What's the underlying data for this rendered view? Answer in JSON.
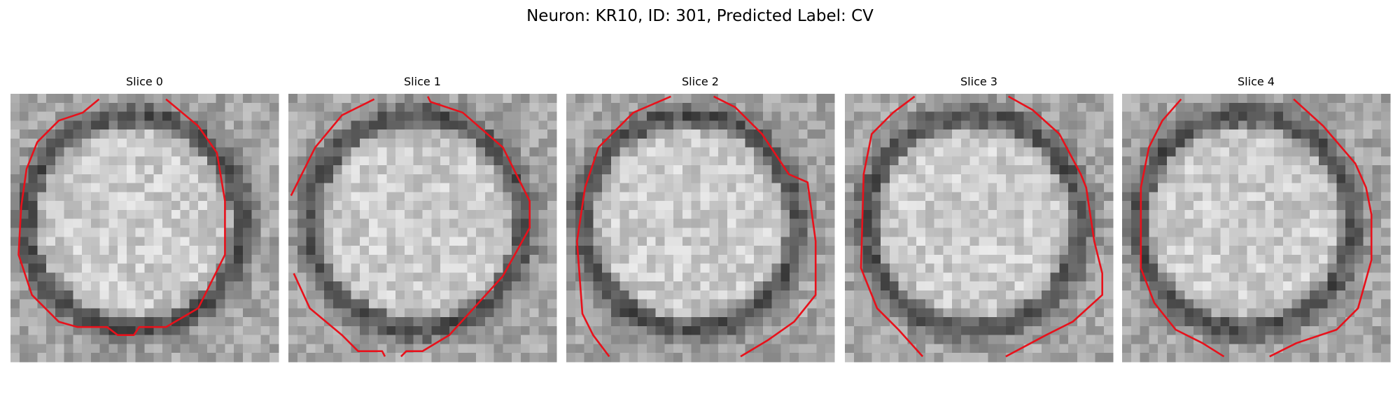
{
  "title": "Neuron: KR10, ID: 301, Predicted Label: CV",
  "panels": [
    {
      "title": "Slice 0"
    },
    {
      "title": "Slice 1"
    },
    {
      "title": "Slice 2"
    },
    {
      "title": "Slice 3"
    },
    {
      "title": "Slice 4"
    }
  ]
}
